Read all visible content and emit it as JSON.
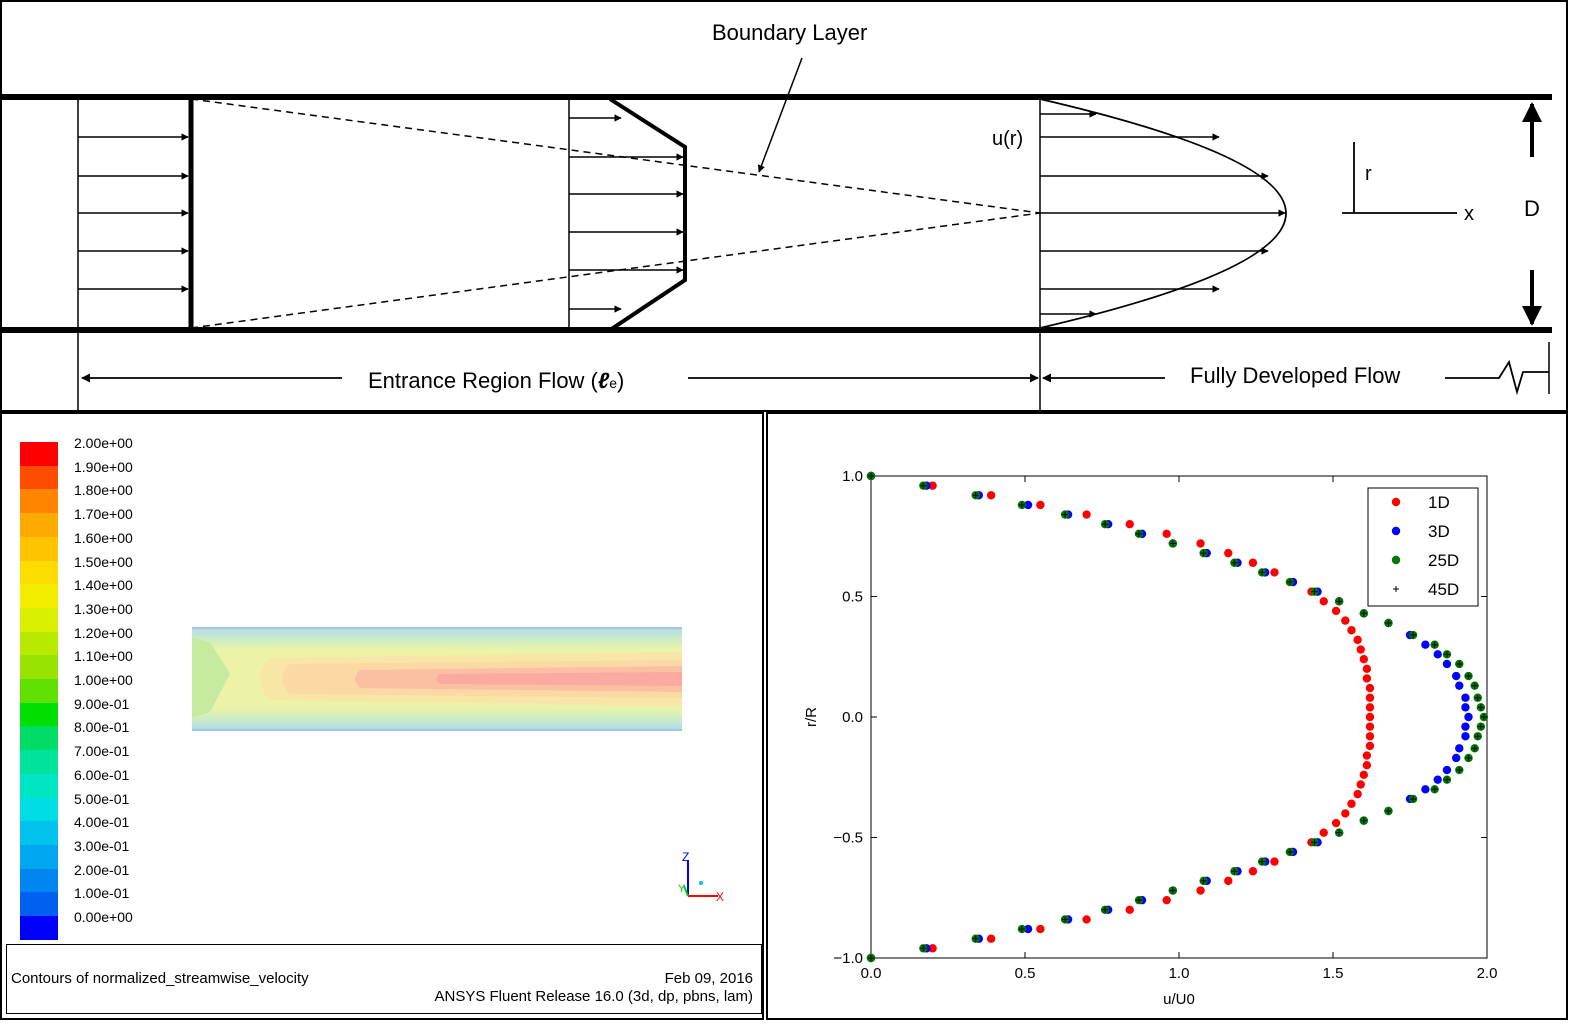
{
  "schematic": {
    "boundary_layer_label": "Boundary Layer",
    "u_label": "u(r)",
    "r_axis_label": "r",
    "x_axis_label": "x",
    "diameter_label": "D",
    "entrance_label": "Entrance Region Flow (",
    "entrance_symbol": "ℓ",
    "entrance_subscript": "e",
    "entrance_close": ")",
    "developed_label": "Fully Developed Flow"
  },
  "contour": {
    "legend_values": [
      "2.00e+00",
      "1.90e+00",
      "1.80e+00",
      "1.70e+00",
      "1.60e+00",
      "1.50e+00",
      "1.40e+00",
      "1.30e+00",
      "1.20e+00",
      "1.10e+00",
      "1.00e+00",
      "9.00e-01",
      "8.00e-01",
      "7.00e-01",
      "6.00e-01",
      "5.00e-01",
      "4.00e-01",
      "3.00e-01",
      "2.00e-01",
      "1.00e-01",
      "0.00e+00"
    ],
    "legend_colors": [
      "#ff0000",
      "#ff4d00",
      "#ff8400",
      "#ffaa00",
      "#ffc400",
      "#ffdc00",
      "#f3ed00",
      "#d8ef00",
      "#b8ea00",
      "#98e400",
      "#5fe000",
      "#00e000",
      "#00dd66",
      "#00e39c",
      "#00e6c4",
      "#00dde4",
      "#00c4ee",
      "#00a6f0",
      "#0086f0",
      "#0060f0",
      "#0000ff"
    ],
    "caption_title": "Contours of normalized_streamwise_velocity",
    "caption_date": "Feb 09, 2016",
    "caption_release": "ANSYS Fluent Release 16.0 (3d, dp, pbns, lam)",
    "axis_z": "Z",
    "axis_y": "Y",
    "axis_x": "X"
  },
  "chart_data": {
    "type": "scatter",
    "xlabel": "u/U0",
    "ylabel": "r/R",
    "xlim": [
      0.0,
      2.0
    ],
    "ylim": [
      -1.0,
      1.0
    ],
    "xticks": [
      "0.0",
      "0.5",
      "1.0",
      "1.5",
      "2.0"
    ],
    "yticks": [
      "1.0",
      "0.5",
      "0.0",
      "−0.5",
      "−1.0"
    ],
    "legend_position": "top-right",
    "series": [
      {
        "name": "1D",
        "color": "#ff0000",
        "marker": "circle",
        "points": [
          [
            0,
            1.0
          ],
          [
            0.2,
            0.96
          ],
          [
            0.39,
            0.92
          ],
          [
            0.55,
            0.88
          ],
          [
            0.7,
            0.84
          ],
          [
            0.84,
            0.8
          ],
          [
            0.96,
            0.76
          ],
          [
            1.07,
            0.72
          ],
          [
            1.16,
            0.68
          ],
          [
            1.24,
            0.64
          ],
          [
            1.31,
            0.6
          ],
          [
            1.37,
            0.56
          ],
          [
            1.43,
            0.52
          ],
          [
            1.47,
            0.48
          ],
          [
            1.51,
            0.44
          ],
          [
            1.54,
            0.4
          ],
          [
            1.56,
            0.36
          ],
          [
            1.58,
            0.32
          ],
          [
            1.59,
            0.28
          ],
          [
            1.6,
            0.24
          ],
          [
            1.61,
            0.2
          ],
          [
            1.61,
            0.16
          ],
          [
            1.62,
            0.12
          ],
          [
            1.62,
            0.08
          ],
          [
            1.62,
            0.04
          ],
          [
            1.62,
            0.0
          ],
          [
            1.62,
            -0.04
          ],
          [
            1.62,
            -0.08
          ],
          [
            1.62,
            -0.12
          ],
          [
            1.61,
            -0.16
          ],
          [
            1.61,
            -0.2
          ],
          [
            1.6,
            -0.24
          ],
          [
            1.59,
            -0.28
          ],
          [
            1.58,
            -0.32
          ],
          [
            1.56,
            -0.36
          ],
          [
            1.54,
            -0.4
          ],
          [
            1.51,
            -0.44
          ],
          [
            1.47,
            -0.48
          ],
          [
            1.43,
            -0.52
          ],
          [
            1.37,
            -0.56
          ],
          [
            1.31,
            -0.6
          ],
          [
            1.24,
            -0.64
          ],
          [
            1.16,
            -0.68
          ],
          [
            1.07,
            -0.72
          ],
          [
            0.96,
            -0.76
          ],
          [
            0.84,
            -0.8
          ],
          [
            0.7,
            -0.84
          ],
          [
            0.55,
            -0.88
          ],
          [
            0.39,
            -0.92
          ],
          [
            0.2,
            -0.96
          ],
          [
            0,
            -1.0
          ]
        ]
      },
      {
        "name": "3D",
        "color": "#0000ff",
        "marker": "circle",
        "points": [
          [
            0,
            1.0
          ],
          [
            0.18,
            0.96
          ],
          [
            0.35,
            0.92
          ],
          [
            0.51,
            0.88
          ],
          [
            0.64,
            0.84
          ],
          [
            0.77,
            0.8
          ],
          [
            0.88,
            0.76
          ],
          [
            0.98,
            0.72
          ],
          [
            1.09,
            0.68
          ],
          [
            1.19,
            0.64
          ],
          [
            1.28,
            0.6
          ],
          [
            1.37,
            0.56
          ],
          [
            1.45,
            0.52
          ],
          [
            1.52,
            0.48
          ],
          [
            1.6,
            0.43
          ],
          [
            1.68,
            0.39
          ],
          [
            1.75,
            0.34
          ],
          [
            1.8,
            0.3
          ],
          [
            1.84,
            0.26
          ],
          [
            1.87,
            0.22
          ],
          [
            1.9,
            0.17
          ],
          [
            1.91,
            0.13
          ],
          [
            1.93,
            0.08
          ],
          [
            1.93,
            0.04
          ],
          [
            1.94,
            0.0
          ],
          [
            1.93,
            -0.04
          ],
          [
            1.93,
            -0.08
          ],
          [
            1.91,
            -0.13
          ],
          [
            1.9,
            -0.17
          ],
          [
            1.87,
            -0.22
          ],
          [
            1.84,
            -0.26
          ],
          [
            1.8,
            -0.3
          ],
          [
            1.75,
            -0.34
          ],
          [
            1.68,
            -0.39
          ],
          [
            1.6,
            -0.43
          ],
          [
            1.52,
            -0.48
          ],
          [
            1.45,
            -0.52
          ],
          [
            1.37,
            -0.56
          ],
          [
            1.28,
            -0.6
          ],
          [
            1.19,
            -0.64
          ],
          [
            1.09,
            -0.68
          ],
          [
            0.98,
            -0.72
          ],
          [
            0.88,
            -0.76
          ],
          [
            0.77,
            -0.8
          ],
          [
            0.64,
            -0.84
          ],
          [
            0.51,
            -0.88
          ],
          [
            0.35,
            -0.92
          ],
          [
            0.18,
            -0.96
          ],
          [
            0,
            -1.0
          ]
        ]
      },
      {
        "name": "25D",
        "color": "#007700",
        "marker": "circle",
        "points": [
          [
            0,
            1.0
          ],
          [
            0.17,
            0.96
          ],
          [
            0.34,
            0.92
          ],
          [
            0.49,
            0.88
          ],
          [
            0.63,
            0.84
          ],
          [
            0.76,
            0.8
          ],
          [
            0.87,
            0.76
          ],
          [
            0.98,
            0.72
          ],
          [
            1.08,
            0.68
          ],
          [
            1.18,
            0.64
          ],
          [
            1.27,
            0.6
          ],
          [
            1.36,
            0.56
          ],
          [
            1.44,
            0.52
          ],
          [
            1.52,
            0.48
          ],
          [
            1.6,
            0.43
          ],
          [
            1.68,
            0.39
          ],
          [
            1.76,
            0.34
          ],
          [
            1.83,
            0.3
          ],
          [
            1.87,
            0.26
          ],
          [
            1.91,
            0.22
          ],
          [
            1.94,
            0.17
          ],
          [
            1.96,
            0.13
          ],
          [
            1.97,
            0.08
          ],
          [
            1.98,
            0.04
          ],
          [
            1.99,
            0.0
          ],
          [
            1.98,
            -0.04
          ],
          [
            1.97,
            -0.08
          ],
          [
            1.96,
            -0.13
          ],
          [
            1.94,
            -0.17
          ],
          [
            1.91,
            -0.22
          ],
          [
            1.87,
            -0.26
          ],
          [
            1.83,
            -0.3
          ],
          [
            1.76,
            -0.34
          ],
          [
            1.68,
            -0.39
          ],
          [
            1.6,
            -0.43
          ],
          [
            1.52,
            -0.48
          ],
          [
            1.44,
            -0.52
          ],
          [
            1.36,
            -0.56
          ],
          [
            1.27,
            -0.6
          ],
          [
            1.18,
            -0.64
          ],
          [
            1.08,
            -0.68
          ],
          [
            0.98,
            -0.72
          ],
          [
            0.87,
            -0.76
          ],
          [
            0.76,
            -0.8
          ],
          [
            0.63,
            -0.84
          ],
          [
            0.49,
            -0.88
          ],
          [
            0.34,
            -0.92
          ],
          [
            0.17,
            -0.96
          ],
          [
            0,
            -1.0
          ]
        ]
      },
      {
        "name": "45D",
        "color": "#000000",
        "marker": "plus",
        "points": [
          [
            0,
            1.0
          ],
          [
            0.17,
            0.96
          ],
          [
            0.34,
            0.92
          ],
          [
            0.49,
            0.88
          ],
          [
            0.63,
            0.84
          ],
          [
            0.76,
            0.8
          ],
          [
            0.87,
            0.76
          ],
          [
            0.98,
            0.72
          ],
          [
            1.08,
            0.68
          ],
          [
            1.18,
            0.64
          ],
          [
            1.27,
            0.6
          ],
          [
            1.36,
            0.56
          ],
          [
            1.44,
            0.52
          ],
          [
            1.52,
            0.48
          ],
          [
            1.6,
            0.43
          ],
          [
            1.68,
            0.39
          ],
          [
            1.76,
            0.34
          ],
          [
            1.83,
            0.3
          ],
          [
            1.87,
            0.26
          ],
          [
            1.91,
            0.22
          ],
          [
            1.94,
            0.17
          ],
          [
            1.96,
            0.13
          ],
          [
            1.97,
            0.08
          ],
          [
            1.98,
            0.04
          ],
          [
            1.99,
            0.0
          ],
          [
            1.98,
            -0.04
          ],
          [
            1.97,
            -0.08
          ],
          [
            1.96,
            -0.13
          ],
          [
            1.94,
            -0.17
          ],
          [
            1.91,
            -0.22
          ],
          [
            1.87,
            -0.26
          ],
          [
            1.83,
            -0.3
          ],
          [
            1.76,
            -0.34
          ],
          [
            1.68,
            -0.39
          ],
          [
            1.6,
            -0.43
          ],
          [
            1.52,
            -0.48
          ],
          [
            1.44,
            -0.52
          ],
          [
            1.36,
            -0.56
          ],
          [
            1.27,
            -0.6
          ],
          [
            1.18,
            -0.64
          ],
          [
            1.08,
            -0.68
          ],
          [
            0.98,
            -0.72
          ],
          [
            0.87,
            -0.76
          ],
          [
            0.76,
            -0.8
          ],
          [
            0.63,
            -0.84
          ],
          [
            0.49,
            -0.88
          ],
          [
            0.34,
            -0.92
          ],
          [
            0.17,
            -0.96
          ],
          [
            0,
            -1.0
          ]
        ]
      }
    ]
  }
}
